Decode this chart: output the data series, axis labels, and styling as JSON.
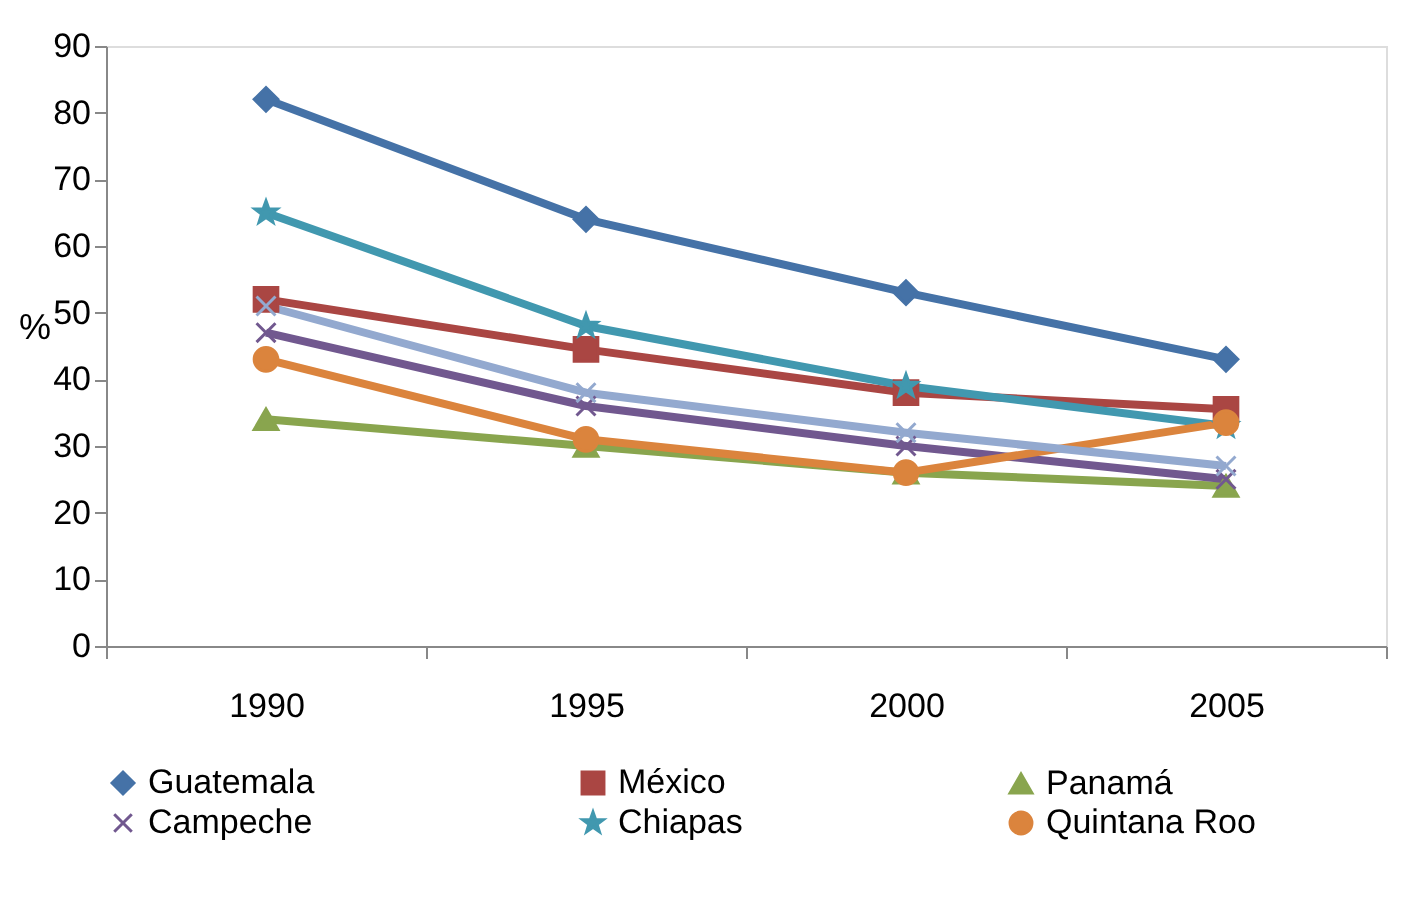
{
  "chart_data": {
    "type": "line",
    "ylabel": "%",
    "categories": [
      "1990",
      "1995",
      "2000",
      "2005"
    ],
    "ylim": [
      0,
      90
    ],
    "yticks": [
      0,
      10,
      20,
      30,
      40,
      50,
      60,
      70,
      80,
      90
    ],
    "grid": false,
    "legend": "bottom",
    "series": [
      {
        "name": "Guatemala",
        "color": "#4572a7",
        "marker": "diamond",
        "values": [
          82,
          64,
          53,
          43
        ]
      },
      {
        "name": "México",
        "color": "#aa4643",
        "marker": "square",
        "values": [
          52,
          44.5,
          38,
          35.5
        ]
      },
      {
        "name": "Panamá",
        "color": "#89a54e",
        "marker": "triangle",
        "values": [
          34,
          30,
          26,
          24
        ]
      },
      {
        "name": "Campeche",
        "color": "#71588f",
        "marker": "cross",
        "values": [
          47,
          36,
          30,
          25
        ]
      },
      {
        "name": "Chiapas",
        "color": "#4198af",
        "marker": "star",
        "values": [
          65,
          48,
          39,
          33
        ]
      },
      {
        "name": "Quintana Roo",
        "color": "#db843d",
        "marker": "circle",
        "values": [
          43,
          31,
          26,
          33.5
        ]
      },
      {
        "color": "#93a9cf",
        "marker": "cross",
        "values": [
          51,
          38,
          32,
          27
        ]
      }
    ]
  }
}
